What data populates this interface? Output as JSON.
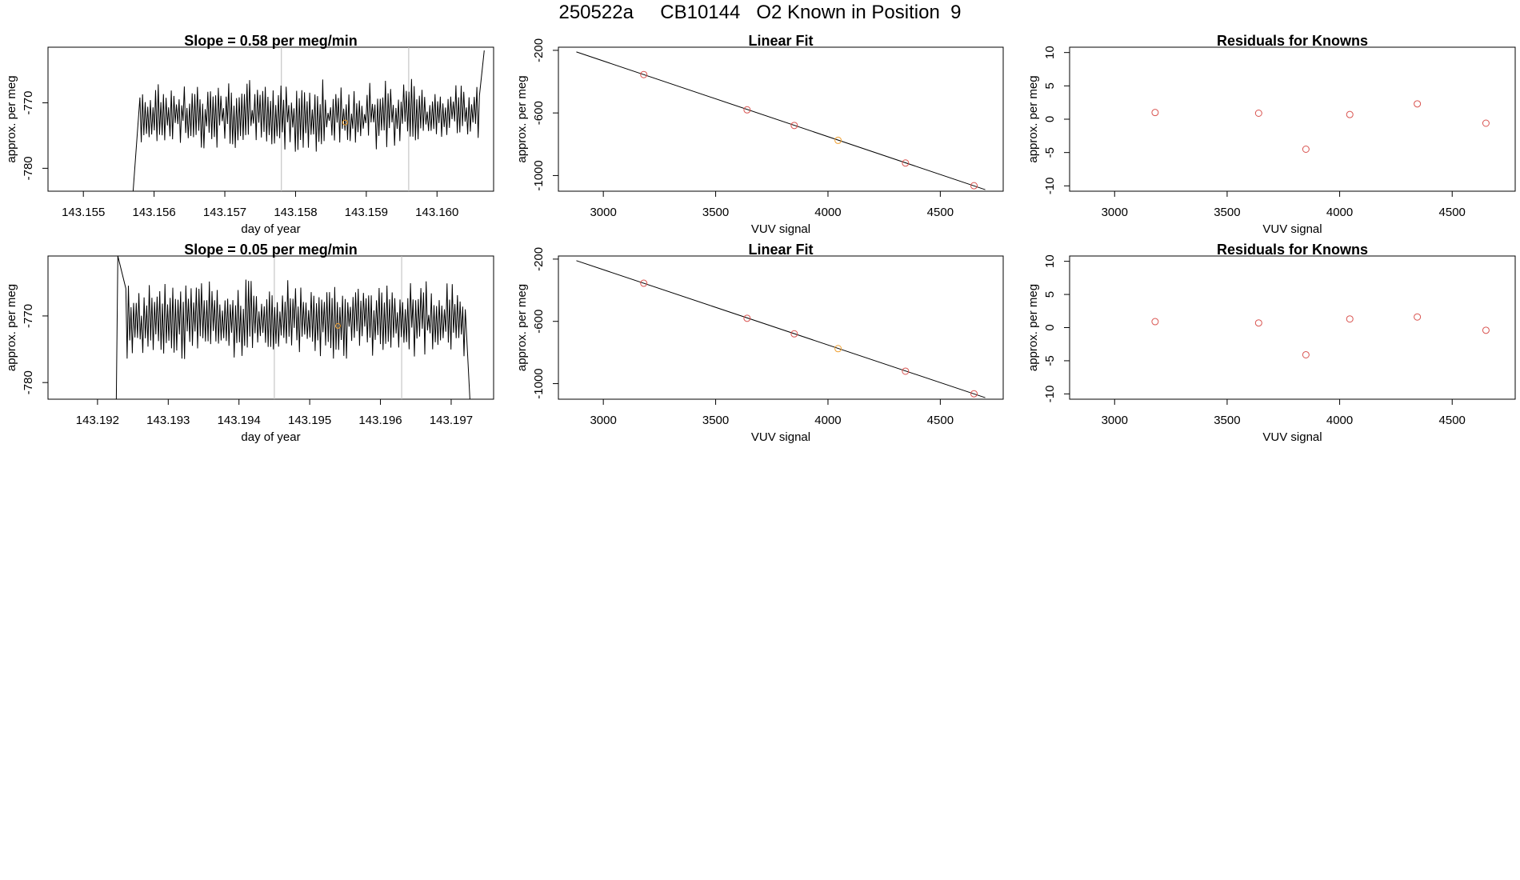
{
  "figure": {
    "title": "250522a     CB10144   O2 Known in Position  9"
  },
  "colors": {
    "line": "#000000",
    "point": "#d9534f",
    "highlight": "#f0a030",
    "guide": "#bbbbbb",
    "axis": "#000000"
  },
  "chart_data": [
    {
      "type": "line",
      "title": "Slope =  0.58  per meg/min",
      "xlabel": "day of year",
      "ylabel": "approx. per meg",
      "xlim": [
        143.1545,
        143.1608
      ],
      "ylim": [
        -783.5,
        -761.5
      ],
      "xticks": [
        143.155,
        143.156,
        143.157,
        143.158,
        143.159,
        143.16
      ],
      "xtick_labels": [
        "143.155",
        "143.156",
        "143.157",
        "143.158",
        "143.159",
        "143.160"
      ],
      "yticks": [
        -780,
        -770
      ],
      "ytick_labels": [
        "-780",
        "-770"
      ],
      "vlines": [
        143.1578,
        143.1596
      ],
      "marker": {
        "x": 143.1587,
        "y": -773
      },
      "series": [
        {
          "x_start": 143.1558,
          "x_end": 143.1606,
          "low": -776,
          "high": -768,
          "start_at": -786,
          "end_at": -762
        }
      ]
    },
    {
      "type": "scatter",
      "title": "Linear Fit",
      "xlabel": "VUV signal",
      "ylabel": "approx. per meg",
      "xlim": [
        2800,
        4780
      ],
      "ylim": [
        -1100,
        -180
      ],
      "xticks": [
        3000,
        3500,
        4000,
        4500
      ],
      "xtick_labels": [
        "3000",
        "3500",
        "4000",
        "4500"
      ],
      "yticks": [
        -1000,
        -600,
        -200
      ],
      "ytick_labels": [
        "-1000",
        "-600",
        "-200"
      ],
      "fit_line": {
        "x": [
          2880,
          4700
        ],
        "y": [
          -210,
          -1090
        ]
      },
      "points": [
        {
          "x": 3180,
          "y": -355,
          "highlight": false
        },
        {
          "x": 3640,
          "y": -580,
          "highlight": false
        },
        {
          "x": 3850,
          "y": -680,
          "highlight": false
        },
        {
          "x": 4045,
          "y": -775,
          "highlight": true
        },
        {
          "x": 4345,
          "y": -920,
          "highlight": false
        },
        {
          "x": 4650,
          "y": -1065,
          "highlight": false
        }
      ]
    },
    {
      "type": "scatter",
      "title": "Residuals for Knowns",
      "xlabel": "VUV signal",
      "ylabel": "approx. per meg",
      "xlim": [
        2800,
        4780
      ],
      "ylim": [
        -10.8,
        10.8
      ],
      "xticks": [
        3000,
        3500,
        4000,
        4500
      ],
      "xtick_labels": [
        "3000",
        "3500",
        "4000",
        "4500"
      ],
      "yticks": [
        -10,
        -5,
        0,
        5,
        10
      ],
      "ytick_labels": [
        "-10",
        "-5",
        "0",
        "5",
        "10"
      ],
      "points": [
        {
          "x": 3180,
          "y": 1.0
        },
        {
          "x": 3640,
          "y": 0.9
        },
        {
          "x": 3850,
          "y": -4.5
        },
        {
          "x": 4045,
          "y": 0.7
        },
        {
          "x": 4345,
          "y": 2.3
        },
        {
          "x": 4650,
          "y": -0.6
        }
      ]
    },
    {
      "type": "line",
      "title": "Slope =  0.05  per meg/min",
      "xlabel": "day of year",
      "ylabel": "approx. per meg",
      "xlim": [
        143.1913,
        143.1976
      ],
      "ylim": [
        -782.5,
        -761
      ],
      "xticks": [
        143.192,
        143.193,
        143.194,
        143.195,
        143.196,
        143.197
      ],
      "xtick_labels": [
        "143.192",
        "143.193",
        "143.194",
        "143.195",
        "143.196",
        "143.197"
      ],
      "yticks": [
        -780,
        -770
      ],
      "ytick_labels": [
        "-780",
        "-770"
      ],
      "vlines": [
        143.1945,
        143.1963
      ],
      "marker": {
        "x": 143.1954,
        "y": -771.5
      },
      "series": [
        {
          "x_start": 143.1924,
          "x_end": 143.1972,
          "low": -775,
          "high": -766,
          "start_at": -761,
          "end_at": -783
        }
      ]
    },
    {
      "type": "scatter",
      "title": "Linear Fit",
      "xlabel": "VUV signal",
      "ylabel": "approx. per meg",
      "xlim": [
        2800,
        4780
      ],
      "ylim": [
        -1100,
        -180
      ],
      "xticks": [
        3000,
        3500,
        4000,
        4500
      ],
      "xtick_labels": [
        "3000",
        "3500",
        "4000",
        "4500"
      ],
      "yticks": [
        -1000,
        -600,
        -200
      ],
      "ytick_labels": [
        "-1000",
        "-600",
        "-200"
      ],
      "fit_line": {
        "x": [
          2880,
          4700
        ],
        "y": [
          -210,
          -1090
        ]
      },
      "points": [
        {
          "x": 3180,
          "y": -355,
          "highlight": false
        },
        {
          "x": 3640,
          "y": -580,
          "highlight": false
        },
        {
          "x": 3850,
          "y": -680,
          "highlight": false
        },
        {
          "x": 4045,
          "y": -775,
          "highlight": true
        },
        {
          "x": 4345,
          "y": -920,
          "highlight": false
        },
        {
          "x": 4650,
          "y": -1065,
          "highlight": false
        }
      ]
    },
    {
      "type": "scatter",
      "title": "Residuals for Knowns",
      "xlabel": "VUV signal",
      "ylabel": "approx. per meg",
      "xlim": [
        2800,
        4780
      ],
      "ylim": [
        -10.8,
        10.8
      ],
      "xticks": [
        3000,
        3500,
        4000,
        4500
      ],
      "xtick_labels": [
        "3000",
        "3500",
        "4000",
        "4500"
      ],
      "yticks": [
        -10,
        -5,
        0,
        5,
        10
      ],
      "ytick_labels": [
        "-10",
        "-5",
        "0",
        "5",
        "10"
      ],
      "points": [
        {
          "x": 3180,
          "y": 0.9
        },
        {
          "x": 3640,
          "y": 0.7
        },
        {
          "x": 3850,
          "y": -4.1
        },
        {
          "x": 4045,
          "y": 1.3
        },
        {
          "x": 4345,
          "y": 1.6
        },
        {
          "x": 4650,
          "y": -0.4
        }
      ]
    }
  ]
}
